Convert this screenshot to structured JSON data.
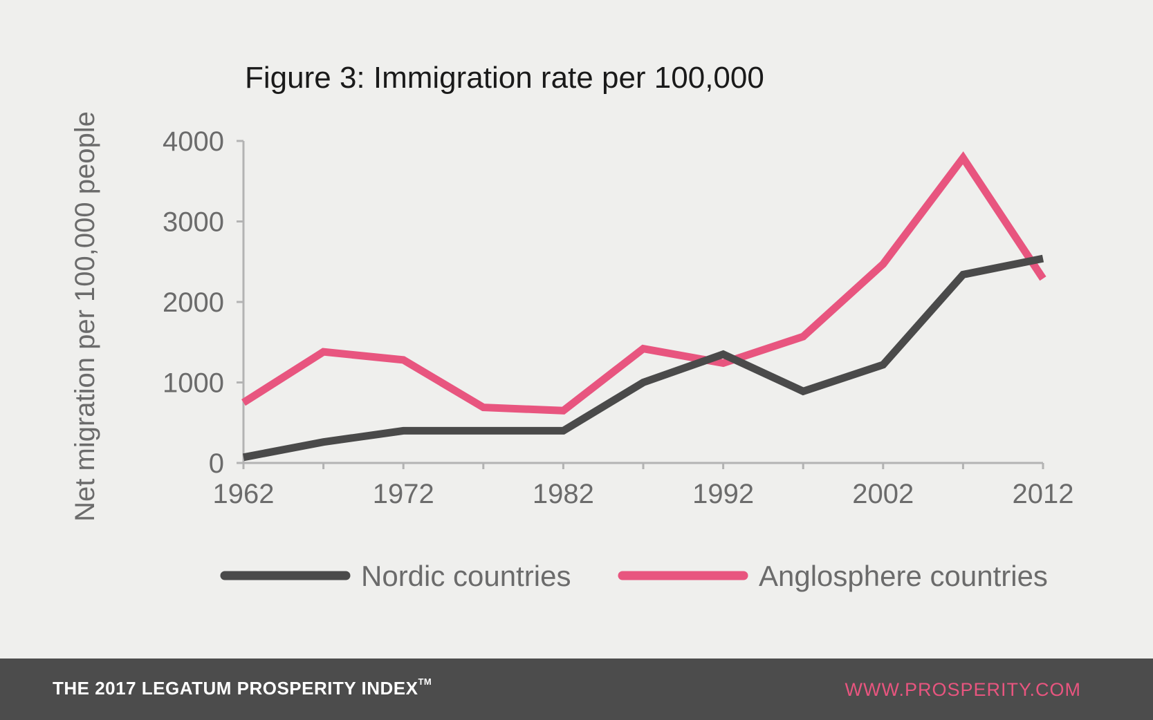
{
  "chart_data": {
    "type": "line",
    "title": "Figure 3: Immigration rate per 100,000",
    "xlabel": "",
    "ylabel": "Net migration per 100,000 people",
    "x": [
      1962,
      1967,
      1972,
      1977,
      1982,
      1987,
      1992,
      1997,
      2002,
      2007,
      2012
    ],
    "xticks": [
      "1962",
      "1972",
      "1982",
      "1992",
      "2002",
      "2012"
    ],
    "yticks": [
      "0",
      "1000",
      "2000",
      "3000",
      "4000"
    ],
    "xlim": [
      1962,
      2012
    ],
    "ylim": [
      0,
      4000
    ],
    "grid": false,
    "legend_position": "bottom",
    "series": [
      {
        "name": "Nordic countries",
        "color": "#4a4a4a",
        "values": [
          70,
          260,
          400,
          400,
          400,
          1000,
          1350,
          890,
          1220,
          2340,
          2540
        ]
      },
      {
        "name": "Anglosphere countries",
        "color": "#e8557f",
        "values": [
          750,
          1380,
          1280,
          690,
          650,
          1420,
          1240,
          1570,
          2470,
          3790,
          2290
        ]
      }
    ]
  },
  "footer": {
    "brand": "THE 2017 LEGATUM PROSPERITY INDEX",
    "trademark": "TM",
    "url": "WWW.PROSPERITY.COM"
  }
}
